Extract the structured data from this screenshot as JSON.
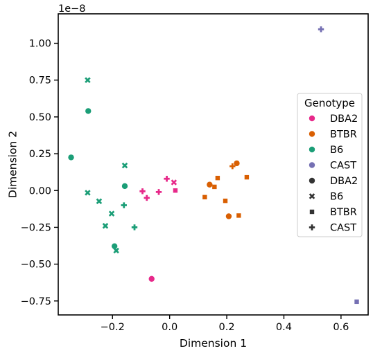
{
  "chart_data": {
    "type": "scatter",
    "title": "",
    "xlabel": "Dimension 1",
    "ylabel": "Dimension 2",
    "y_offset_label": "1e−8",
    "xlim": [
      -0.39,
      0.695
    ],
    "ylim": [
      -0.845,
      1.2
    ],
    "grid": false,
    "x_ticks": [
      -0.2,
      0.0,
      0.2,
      0.4,
      0.6
    ],
    "x_tick_labels": [
      "−0.2",
      "0.0",
      "0.2",
      "0.4",
      "0.6"
    ],
    "y_ticks": [
      -0.75,
      -0.5,
      -0.25,
      0.0,
      0.25,
      0.5,
      0.75,
      1.0
    ],
    "y_tick_labels": [
      "−0.75",
      "−0.50",
      "−0.25",
      "0.00",
      "0.25",
      "0.50",
      "0.75",
      "1.00"
    ],
    "colors": {
      "DBA2": "#e7298a",
      "BTBR": "#d95f02",
      "B6": "#1b9e77",
      "CAST": "#7570b3",
      "neutral": "#333333"
    },
    "legend": {
      "title": "Genotype",
      "placement": "center-right",
      "entries": [
        {
          "label": "DBA2",
          "color": "#e7298a",
          "marker": "circle"
        },
        {
          "label": "BTBR",
          "color": "#d95f02",
          "marker": "circle"
        },
        {
          "label": "B6",
          "color": "#1b9e77",
          "marker": "circle"
        },
        {
          "label": "CAST",
          "color": "#7570b3",
          "marker": "circle"
        },
        {
          "label": "DBA2",
          "color": "#333333",
          "marker": "circle"
        },
        {
          "label": "B6",
          "color": "#333333",
          "marker": "x"
        },
        {
          "label": "BTBR",
          "color": "#333333",
          "marker": "square"
        },
        {
          "label": "CAST",
          "color": "#333333",
          "marker": "plus"
        }
      ]
    },
    "points": [
      {
        "x": -0.063,
        "y": -0.6,
        "color_group": "DBA2",
        "marker": "circle"
      },
      {
        "x": -0.095,
        "y": -0.005,
        "color_group": "DBA2",
        "marker": "plus"
      },
      {
        "x": -0.08,
        "y": -0.05,
        "color_group": "DBA2",
        "marker": "plus"
      },
      {
        "x": -0.038,
        "y": -0.01,
        "color_group": "DBA2",
        "marker": "plus"
      },
      {
        "x": -0.01,
        "y": 0.08,
        "color_group": "DBA2",
        "marker": "plus"
      },
      {
        "x": 0.015,
        "y": 0.055,
        "color_group": "DBA2",
        "marker": "x"
      },
      {
        "x": 0.02,
        "y": 0.0,
        "color_group": "DBA2",
        "marker": "square"
      },
      {
        "x": 0.14,
        "y": 0.04,
        "color_group": "BTBR",
        "marker": "circle"
      },
      {
        "x": 0.235,
        "y": 0.185,
        "color_group": "BTBR",
        "marker": "circle"
      },
      {
        "x": 0.207,
        "y": -0.175,
        "color_group": "BTBR",
        "marker": "circle"
      },
      {
        "x": 0.168,
        "y": 0.085,
        "color_group": "BTBR",
        "marker": "square"
      },
      {
        "x": 0.157,
        "y": 0.025,
        "color_group": "BTBR",
        "marker": "square"
      },
      {
        "x": 0.123,
        "y": -0.045,
        "color_group": "BTBR",
        "marker": "square"
      },
      {
        "x": 0.195,
        "y": -0.07,
        "color_group": "BTBR",
        "marker": "square"
      },
      {
        "x": 0.242,
        "y": -0.17,
        "color_group": "BTBR",
        "marker": "square"
      },
      {
        "x": 0.27,
        "y": 0.09,
        "color_group": "BTBR",
        "marker": "square"
      },
      {
        "x": 0.22,
        "y": 0.165,
        "color_group": "BTBR",
        "marker": "plus"
      },
      {
        "x": -0.285,
        "y": 0.54,
        "color_group": "B6",
        "marker": "circle"
      },
      {
        "x": -0.345,
        "y": 0.225,
        "color_group": "B6",
        "marker": "circle"
      },
      {
        "x": -0.157,
        "y": 0.03,
        "color_group": "B6",
        "marker": "circle"
      },
      {
        "x": -0.193,
        "y": -0.378,
        "color_group": "B6",
        "marker": "circle"
      },
      {
        "x": -0.287,
        "y": 0.75,
        "color_group": "B6",
        "marker": "x"
      },
      {
        "x": -0.157,
        "y": 0.17,
        "color_group": "B6",
        "marker": "x"
      },
      {
        "x": -0.287,
        "y": -0.015,
        "color_group": "B6",
        "marker": "x"
      },
      {
        "x": -0.247,
        "y": -0.073,
        "color_group": "B6",
        "marker": "x"
      },
      {
        "x": -0.203,
        "y": -0.157,
        "color_group": "B6",
        "marker": "x"
      },
      {
        "x": -0.225,
        "y": -0.24,
        "color_group": "B6",
        "marker": "x"
      },
      {
        "x": -0.187,
        "y": -0.408,
        "color_group": "B6",
        "marker": "x"
      },
      {
        "x": -0.16,
        "y": -0.1,
        "color_group": "B6",
        "marker": "plus"
      },
      {
        "x": -0.123,
        "y": -0.25,
        "color_group": "B6",
        "marker": "plus"
      },
      {
        "x": 0.53,
        "y": 1.095,
        "color_group": "CAST",
        "marker": "plus"
      },
      {
        "x": 0.655,
        "y": -0.755,
        "color_group": "CAST",
        "marker": "square"
      }
    ]
  }
}
